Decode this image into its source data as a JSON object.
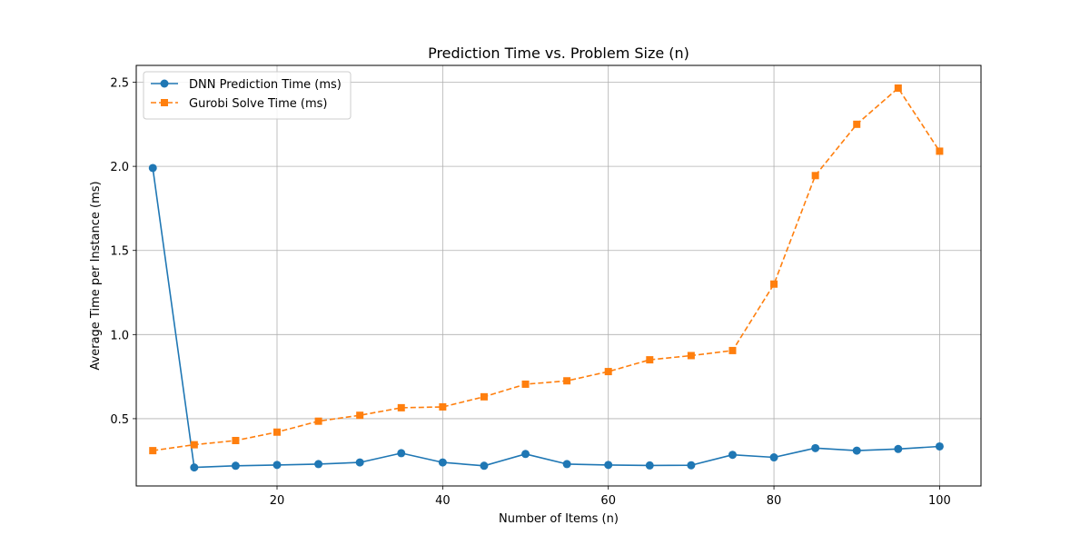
{
  "chart_data": {
    "type": "line",
    "title": "Prediction Time vs. Problem Size (n)",
    "xlabel": "Number of Items (n)",
    "ylabel": "Average Time per Instance (ms)",
    "xlim": [
      3,
      105
    ],
    "ylim": [
      0.1,
      2.6
    ],
    "xticks": [
      20,
      40,
      60,
      80,
      100
    ],
    "yticks": [
      0.5,
      1.0,
      1.5,
      2.0,
      2.5
    ],
    "ytick_labels": [
      "0.5",
      "1.0",
      "1.5",
      "2.0",
      "2.5"
    ],
    "grid": true,
    "legend_position": "top-left",
    "x": [
      5,
      10,
      15,
      20,
      25,
      30,
      35,
      40,
      45,
      50,
      55,
      60,
      65,
      70,
      75,
      80,
      85,
      90,
      95,
      100
    ],
    "series": [
      {
        "name": "DNN Prediction Time (ms)",
        "color": "#1f77b4",
        "line_style": "solid",
        "marker": "circle",
        "values": [
          1.99,
          0.21,
          0.22,
          0.225,
          0.23,
          0.24,
          0.295,
          0.24,
          0.22,
          0.29,
          0.23,
          0.225,
          0.222,
          0.223,
          0.285,
          0.27,
          0.325,
          0.31,
          0.32,
          0.335
        ]
      },
      {
        "name": "Gurobi Solve Time (ms)",
        "color": "#ff7f0e",
        "line_style": "dashed",
        "marker": "square",
        "values": [
          0.31,
          0.345,
          0.37,
          0.42,
          0.485,
          0.52,
          0.565,
          0.57,
          0.63,
          0.705,
          0.725,
          0.78,
          0.85,
          0.875,
          0.905,
          1.3,
          1.945,
          2.25,
          2.465,
          2.09
        ]
      }
    ]
  }
}
